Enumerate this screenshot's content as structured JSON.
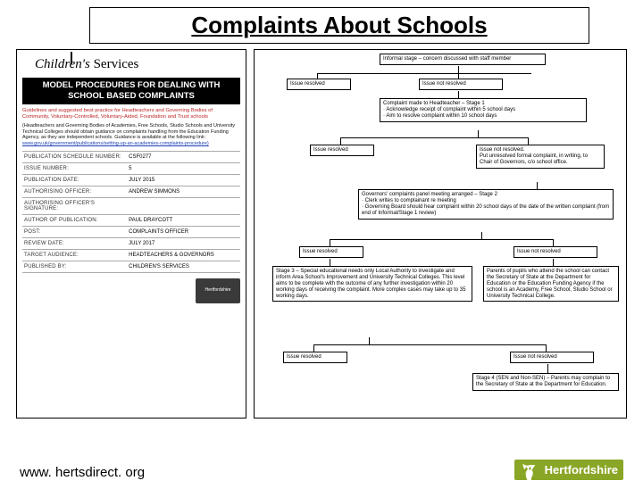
{
  "title": "Complaints About Schools",
  "footer_url": "www. hertsdirect. org",
  "logo_text": "Hertfordshire",
  "doc": {
    "cs_children": "Children's",
    "cs_services": " Services",
    "model_heading": "MODEL PROCEDURES FOR DEALING WITH SCHOOL BASED COMPLAINTS",
    "guidelines": "Guidelines and suggested best practice for Headteachers and Governing Bodies of Community, Voluntary-Controlled, Voluntary-Aided, Foundation and Trust schools",
    "note_main": "(Headteachers and Governing Bodies of Academies, Free Schools, Studio Schools and University Technical Colleges should obtain guidance on complaints handling from the Education Funding Agency, as they are independent schools. Guidance is available at the following link:",
    "note_link": "www.gov.uk/government/publications/setting-up-an-academies-complaints-procedure)",
    "meta": [
      [
        "PUBLICATION SCHEDULE NUMBER:",
        "CSF0277"
      ],
      [
        "ISSUE NUMBER:",
        "5"
      ],
      [
        "PUBLICATION DATE:",
        "JULY 2015"
      ],
      [
        "AUTHORISING OFFICER:",
        "ANDREW SIMMONS"
      ],
      [
        "AUTHORISING OFFICER'S SIGNATURE:",
        ""
      ],
      [
        "AUTHOR OF PUBLICATION:",
        "PAUL DRAYCOTT"
      ],
      [
        "POST:",
        "COMPLAINTS OFFICER"
      ],
      [
        "REVIEW DATE:",
        "JULY 2017"
      ],
      [
        "TARGET AUDIENCE:",
        "HEADTEACHERS & GOVERNORS"
      ],
      [
        "PUBLISHED BY:",
        "CHILDREN'S SERVICES"
      ]
    ],
    "mini_logo": "Hertfordshire"
  },
  "flow": {
    "n0": "Informal stage – concern discussed with staff member",
    "r1": "Issue resolved",
    "nr1": "Issue not resolved",
    "n1": "Complaint made to Headteacher – Stage 1\n· Acknowledge receipt of complaint within 5 school days\n· Aim to resolve complaint within 10 school days",
    "r2": "Issue resolved",
    "nr2": "Issue not resolved.\nPut unresolved formal complaint, in writing, to Chair of Governors, c/o school office.",
    "n2": "Governors' complaints panel meeting arranged – Stage 2\n· Clerk writes to complainant re meeting\n· Governing Board should hear complaint within 20 school days of the date of the written complaint (from end of Informal/Stage 1 review)",
    "r3": "Issue resolved",
    "nr3": "Issue not resolved",
    "n3": "Stage 3 – Special educational needs only\nLocal Authority to investigate and inform Area School's Improvement and University Technical Colleges. This level aims to be complete with the outcome of any further investigation within 20 working days of receiving the complaint.\nMore complex cases may take up to 35 working days.",
    "n3b": "Parents of pupils who attend the school can contact the Secretary of State at the Department for Education or the Education Funding Agency if the school is an Academy, Free School, Studio School or University Technical College.",
    "r4": "Issue resolved",
    "nr4": "Issue not resolved",
    "n4": "Stage 4 (SEN and Non-SEN) – Parents may complain to the Secretary of State at the Department for Education."
  },
  "colors": {
    "accent": "#8aa626"
  }
}
